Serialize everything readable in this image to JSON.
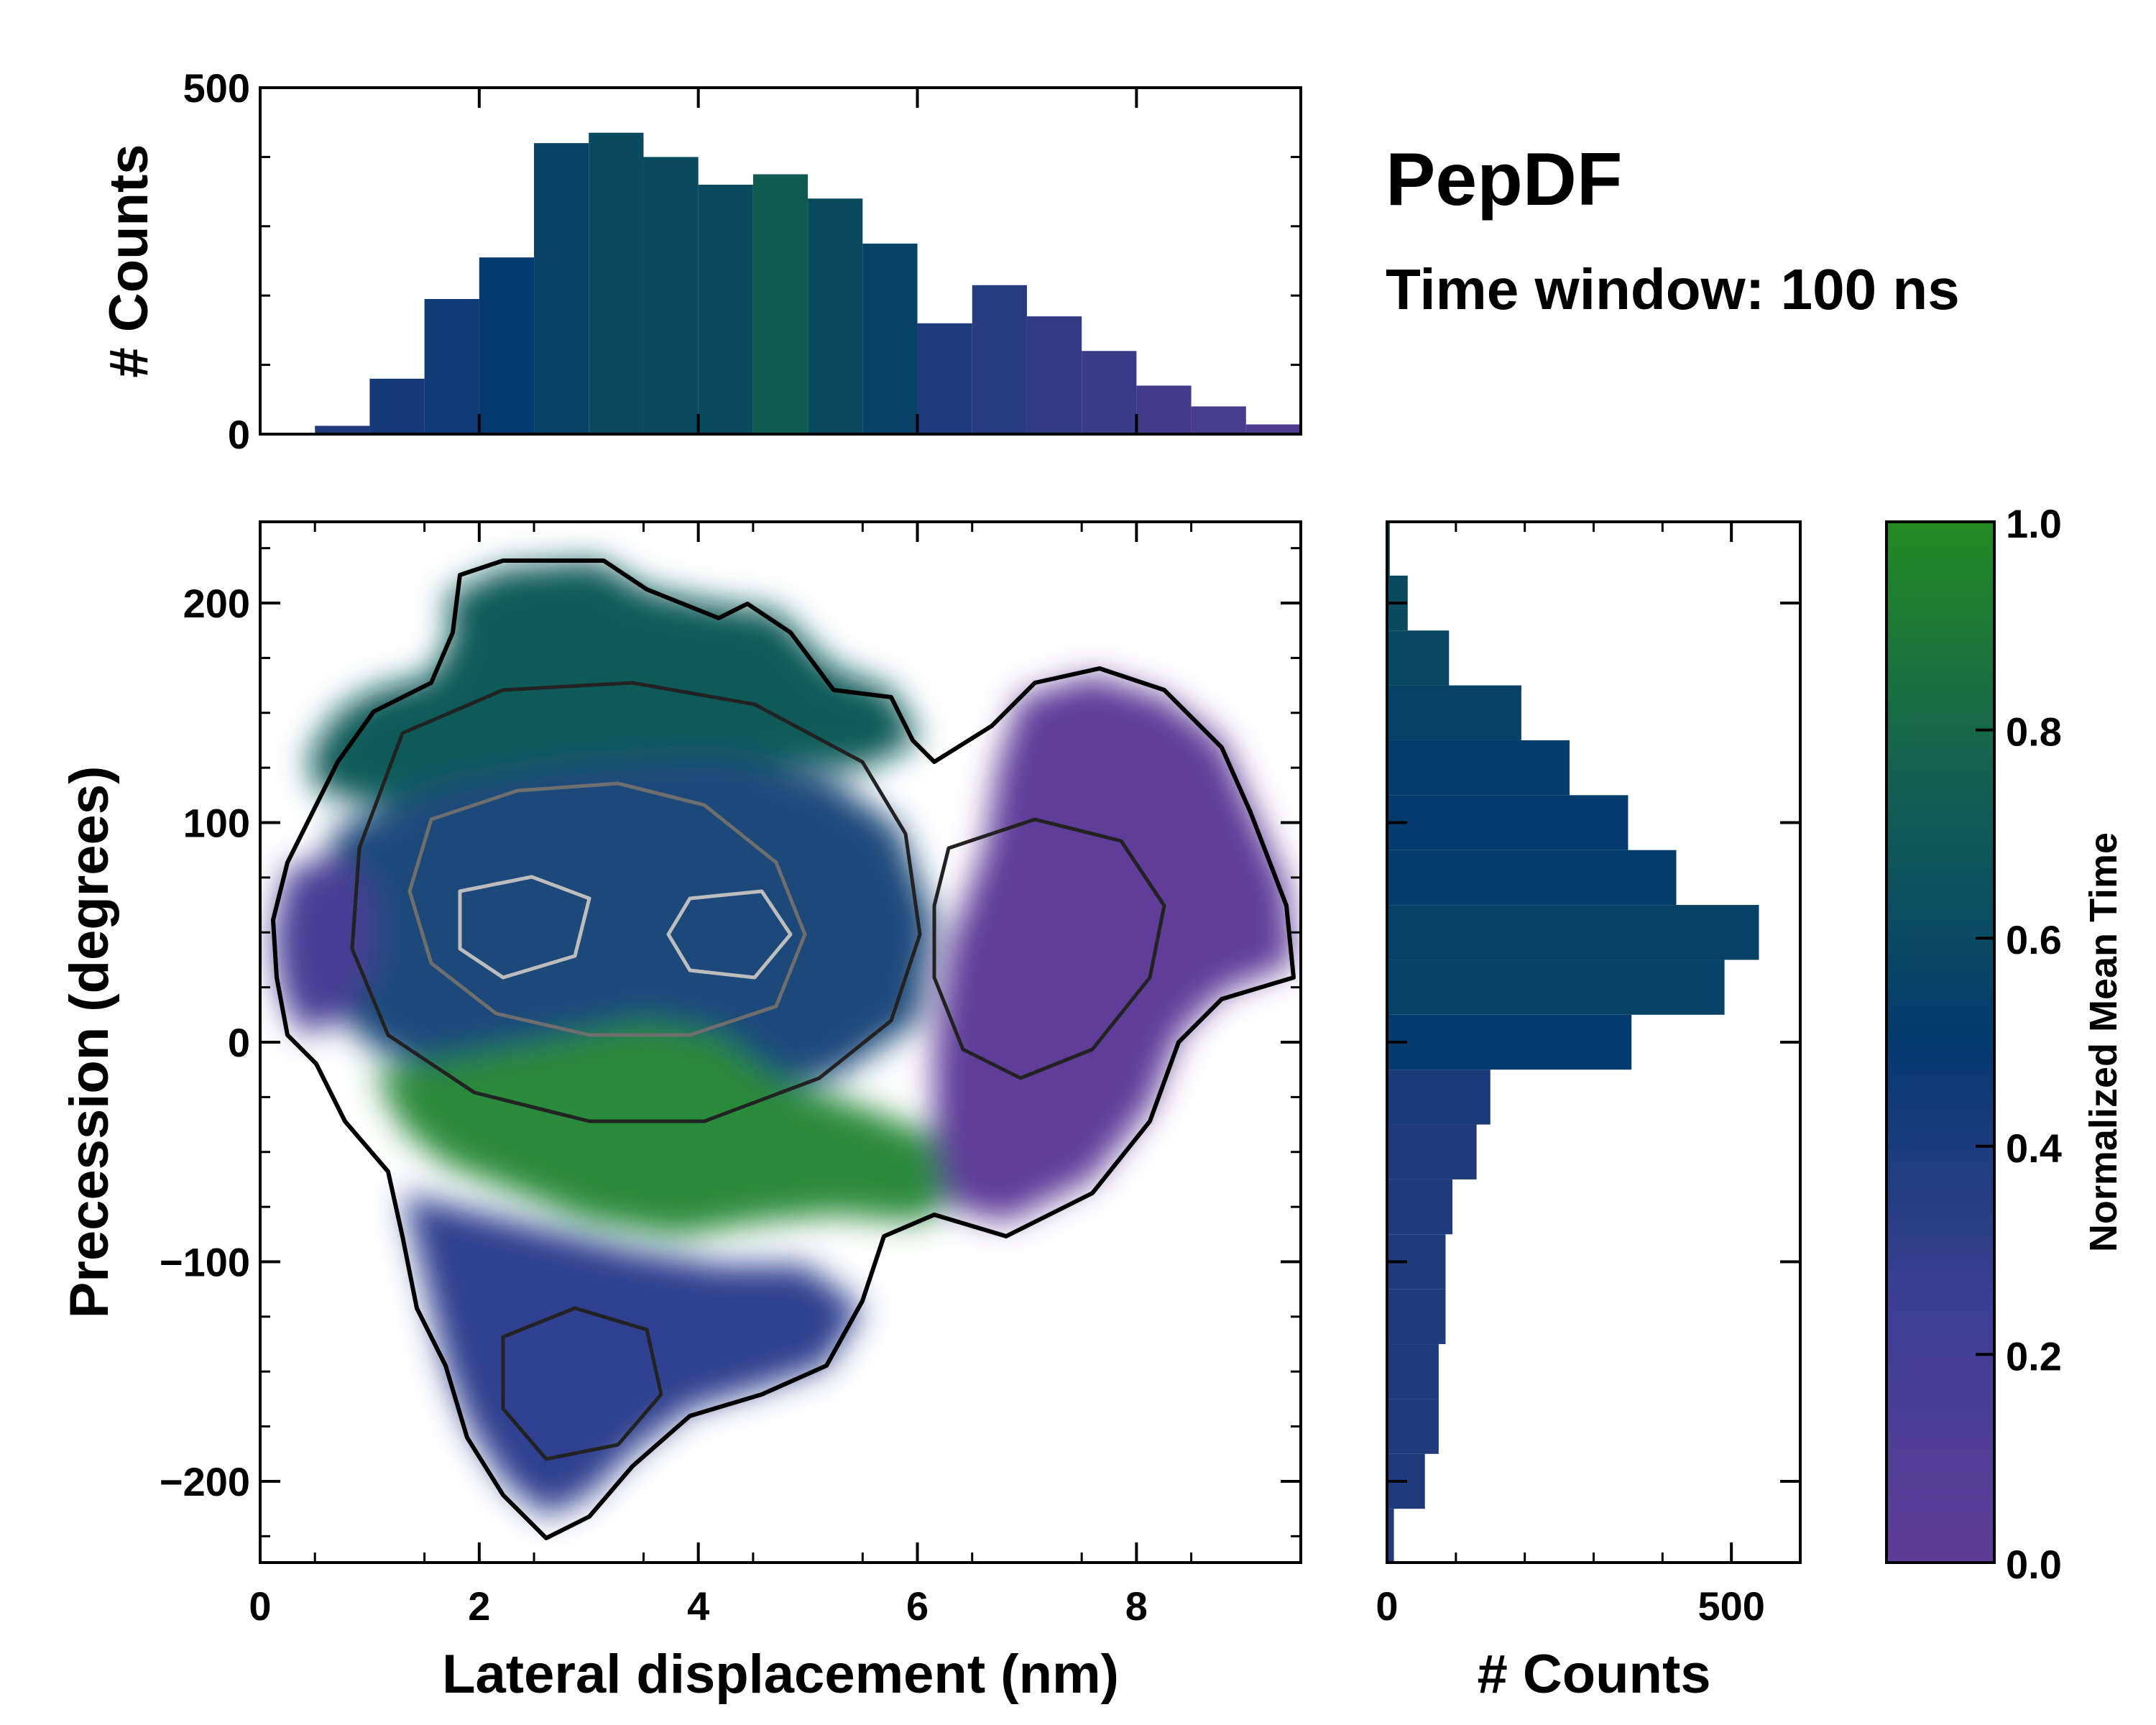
{
  "title": "PepDF",
  "subtitle": "Time window: 100 ns",
  "colors": {
    "low": "#5e3c99",
    "mid": "#043a6e",
    "high": "#228b22",
    "frame": "#000000"
  },
  "chart_data": [
    {
      "type": "heatmap",
      "name": "joint-distribution",
      "xlabel": "Lateral displacement (nm)",
      "ylabel": "Precession (degrees)",
      "xlim": [
        0,
        9.5
      ],
      "ylim": [
        -237,
        237
      ],
      "x_ticks": [
        "0",
        "2",
        "4",
        "6",
        "8"
      ],
      "x_tick_values": [
        0,
        2,
        4,
        6,
        8
      ],
      "y_ticks": [
        "200",
        "100",
        "0",
        "−100",
        "−200"
      ],
      "y_tick_values": [
        200,
        100,
        0,
        -100,
        -200
      ],
      "color_meaning": "Normalized Mean Time",
      "regions": [
        {
          "label": "upper-left lobe",
          "x_range": [
            1.5,
            5.5
          ],
          "y_range": [
            60,
            215
          ],
          "normalized_mean_time": 0.6
        },
        {
          "label": "central core",
          "x_range": [
            1.5,
            6.0
          ],
          "y_range": [
            -30,
            80
          ],
          "normalized_mean_time": 0.55
        },
        {
          "label": "lower-center band",
          "x_range": [
            3.5,
            6.5
          ],
          "y_range": [
            -110,
            -20
          ],
          "normalized_mean_time": 0.85
        },
        {
          "label": "left edge",
          "x_range": [
            0.2,
            1.8
          ],
          "y_range": [
            -30,
            80
          ],
          "normalized_mean_time": 0.2
        },
        {
          "label": "right lobe",
          "x_range": [
            6.5,
            9.3
          ],
          "y_range": [
            -90,
            160
          ],
          "normalized_mean_time": 0.15
        },
        {
          "label": "bottom tail",
          "x_range": [
            1.8,
            5.0
          ],
          "y_range": [
            -235,
            -100
          ],
          "normalized_mean_time": 0.35
        }
      ]
    },
    {
      "type": "bar",
      "name": "top-marginal-histogram",
      "ylabel": "# Counts",
      "ylim": [
        0,
        500
      ],
      "y_ticks": [
        "0",
        "500"
      ],
      "y_tick_values": [
        0,
        500
      ],
      "x": [
        0.25,
        0.75,
        1.25,
        1.75,
        2.25,
        2.75,
        3.25,
        3.75,
        4.25,
        4.75,
        5.25,
        5.75,
        6.25,
        6.75,
        7.25,
        7.75,
        8.25,
        8.75,
        9.25
      ],
      "values": [
        2,
        12,
        80,
        195,
        255,
        420,
        435,
        400,
        360,
        375,
        340,
        275,
        160,
        215,
        170,
        120,
        70,
        40,
        14
      ],
      "normalized_mean_time": [
        0.35,
        0.35,
        0.4,
        0.45,
        0.5,
        0.55,
        0.6,
        0.6,
        0.6,
        0.7,
        0.6,
        0.55,
        0.35,
        0.3,
        0.25,
        0.2,
        0.15,
        0.12,
        0.1
      ]
    },
    {
      "type": "bar",
      "name": "right-marginal-histogram",
      "xlabel": "# Counts",
      "xlim": [
        0,
        600
      ],
      "x_ticks": [
        "0",
        "500"
      ],
      "x_tick_values": [
        0,
        500
      ],
      "categories": [
        225,
        200,
        175,
        150,
        125,
        100,
        75,
        50,
        25,
        0,
        -25,
        -50,
        -75,
        -100,
        -125,
        -150,
        -175,
        -200,
        -225
      ],
      "values": [
        4,
        30,
        90,
        195,
        265,
        350,
        420,
        540,
        490,
        355,
        150,
        130,
        95,
        85,
        85,
        75,
        75,
        55,
        10
      ],
      "normalized_mean_time": [
        0.6,
        0.6,
        0.58,
        0.55,
        0.52,
        0.5,
        0.52,
        0.55,
        0.55,
        0.5,
        0.38,
        0.35,
        0.35,
        0.35,
        0.35,
        0.35,
        0.35,
        0.35,
        0.35
      ]
    },
    {
      "type": "colorbar",
      "name": "colorbar",
      "label": "Normalized Mean Time",
      "range": [
        0,
        1
      ],
      "ticks": [
        "1.0",
        "0.8",
        "0.6",
        "0.4",
        "0.2",
        "0.0"
      ],
      "tick_values": [
        1.0,
        0.8,
        0.6,
        0.4,
        0.2,
        0.0
      ]
    }
  ]
}
